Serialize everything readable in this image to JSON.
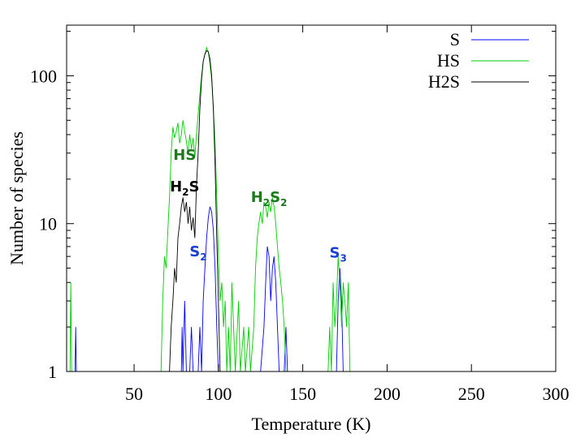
{
  "chart_data": {
    "type": "line",
    "xlabel": "Temperature (K)",
    "ylabel": "Number of species",
    "xlim": [
      10,
      300
    ],
    "ylim": [
      1,
      220
    ],
    "y_scale": "log",
    "grid": false,
    "legend_position": "top-right",
    "x_ticks": [
      50,
      100,
      150,
      200,
      250,
      300
    ],
    "y_ticks": [
      1,
      10,
      100
    ],
    "x_tick_labels": [
      "50",
      "100",
      "150",
      "200",
      "250",
      "300"
    ],
    "y_tick_labels": [
      "1",
      "10",
      "100"
    ],
    "colors": {
      "S": "#0000ff",
      "HS": "#00cc00",
      "H2S": "#000000"
    },
    "series": [
      {
        "name": "S",
        "points": [
          [
            15,
            1
          ],
          [
            15.4,
            2
          ],
          [
            15.8,
            1
          ],
          [
            78,
            1
          ],
          [
            78.5,
            2
          ],
          [
            79,
            1
          ],
          [
            80,
            3
          ],
          [
            81,
            1
          ],
          [
            83,
            1
          ],
          [
            84,
            2
          ],
          [
            85,
            1
          ],
          [
            88,
            1
          ],
          [
            89,
            2
          ],
          [
            90,
            1
          ],
          [
            91,
            3
          ],
          [
            92,
            5
          ],
          [
            93,
            8
          ],
          [
            94,
            11
          ],
          [
            95,
            13
          ],
          [
            96,
            12
          ],
          [
            97,
            9
          ],
          [
            98,
            5
          ],
          [
            99,
            2
          ],
          [
            100,
            1
          ],
          [
            125,
            1
          ],
          [
            127,
            2
          ],
          [
            128,
            4
          ],
          [
            129,
            7
          ],
          [
            130,
            6
          ],
          [
            131,
            3
          ],
          [
            132,
            5
          ],
          [
            133,
            6
          ],
          [
            134,
            4
          ],
          [
            135,
            2
          ],
          [
            136,
            1
          ],
          [
            139,
            1
          ],
          [
            140,
            2
          ],
          [
            141,
            1
          ],
          [
            170,
            1
          ],
          [
            171,
            3
          ],
          [
            172,
            5
          ],
          [
            173,
            3
          ],
          [
            174,
            1
          ]
        ]
      },
      {
        "name": "HS",
        "points": [
          [
            12,
            1
          ],
          [
            12.5,
            4
          ],
          [
            13,
            1
          ],
          [
            66,
            1
          ],
          [
            67,
            3
          ],
          [
            68,
            6
          ],
          [
            69,
            5
          ],
          [
            70,
            9
          ],
          [
            71,
            15
          ],
          [
            72,
            30
          ],
          [
            73,
            45
          ],
          [
            74,
            38
          ],
          [
            75,
            42
          ],
          [
            76,
            48
          ],
          [
            77,
            35
          ],
          [
            78,
            40
          ],
          [
            79,
            50
          ],
          [
            80,
            42
          ],
          [
            81,
            36
          ],
          [
            82,
            30
          ],
          [
            83,
            40
          ],
          [
            84,
            32
          ],
          [
            85,
            38
          ],
          [
            86,
            28
          ],
          [
            87,
            40
          ],
          [
            88,
            55
          ],
          [
            89,
            75
          ],
          [
            90,
            100
          ],
          [
            91,
            125
          ],
          [
            92,
            140
          ],
          [
            93,
            155
          ],
          [
            94,
            145
          ],
          [
            95,
            120
          ],
          [
            96,
            95
          ],
          [
            97,
            60
          ],
          [
            98,
            35
          ],
          [
            99,
            15
          ],
          [
            100,
            6
          ],
          [
            101,
            3
          ],
          [
            102,
            4
          ],
          [
            103,
            2
          ],
          [
            104,
            3
          ],
          [
            105,
            1
          ],
          [
            106,
            2
          ],
          [
            107,
            1
          ],
          [
            108,
            4
          ],
          [
            109,
            2
          ],
          [
            110,
            1
          ],
          [
            112,
            3
          ],
          [
            113,
            1
          ],
          [
            115,
            2
          ],
          [
            116,
            1
          ],
          [
            118,
            2
          ],
          [
            119,
            1
          ],
          [
            121,
            2
          ],
          [
            122,
            5
          ],
          [
            123,
            8
          ],
          [
            124,
            10
          ],
          [
            125,
            12
          ],
          [
            126,
            10
          ],
          [
            127,
            14
          ],
          [
            128,
            13
          ],
          [
            129,
            11
          ],
          [
            130,
            14
          ],
          [
            131,
            12
          ],
          [
            132,
            15
          ],
          [
            133,
            13
          ],
          [
            134,
            10
          ],
          [
            135,
            7
          ],
          [
            136,
            5
          ],
          [
            137,
            4
          ],
          [
            138,
            3
          ],
          [
            139,
            2
          ],
          [
            140,
            1
          ],
          [
            165,
            1
          ],
          [
            166,
            2
          ],
          [
            167,
            1
          ],
          [
            168,
            4
          ],
          [
            169,
            2
          ],
          [
            170,
            3
          ],
          [
            171,
            6
          ],
          [
            172,
            4
          ],
          [
            173,
            2
          ],
          [
            174,
            4
          ],
          [
            175,
            3
          ],
          [
            176,
            2
          ],
          [
            177,
            4
          ],
          [
            178,
            1
          ]
        ]
      },
      {
        "name": "H2S",
        "points": [
          [
            71,
            1
          ],
          [
            72,
            2
          ],
          [
            73,
            3
          ],
          [
            74,
            5
          ],
          [
            75,
            4
          ],
          [
            76,
            8
          ],
          [
            77,
            10
          ],
          [
            78,
            13
          ],
          [
            79,
            15
          ],
          [
            80,
            12
          ],
          [
            81,
            14
          ],
          [
            82,
            10
          ],
          [
            83,
            13
          ],
          [
            84,
            9
          ],
          [
            85,
            11
          ],
          [
            86,
            8
          ],
          [
            87,
            18
          ],
          [
            88,
            30
          ],
          [
            89,
            60
          ],
          [
            90,
            95
          ],
          [
            91,
            125
          ],
          [
            92,
            140
          ],
          [
            93,
            148
          ],
          [
            94,
            145
          ],
          [
            95,
            130
          ],
          [
            96,
            100
          ],
          [
            97,
            60
          ],
          [
            98,
            25
          ],
          [
            99,
            8
          ],
          [
            100,
            3
          ],
          [
            101,
            1
          ]
        ]
      }
    ],
    "annotations": [
      {
        "main": "HS",
        "sub": "",
        "tail": "",
        "color": "#1b7a1b",
        "x": 80,
        "y": 27
      },
      {
        "main": "H",
        "sub": "2",
        "tail": "S",
        "color": "#000000",
        "x": 80,
        "y": 16.5
      },
      {
        "main": "S",
        "sub": "2",
        "tail": "",
        "color": "#1a3fd6",
        "x": 88,
        "y": 6
      },
      {
        "main": "H",
        "sub": "2",
        "tail": "S",
        "sub2": "2",
        "color": "#1b7a1b",
        "x": 130,
        "y": 14
      },
      {
        "main": "S",
        "sub": "3",
        "tail": "",
        "color": "#1a3fd6",
        "x": 171,
        "y": 5.9
      }
    ]
  }
}
